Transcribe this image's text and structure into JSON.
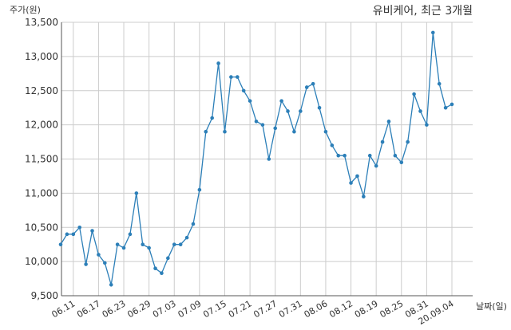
{
  "chart_data": {
    "type": "line",
    "title": "유비케어, 최근 3개월",
    "xlabel": "날짜(일)",
    "ylabel": "주가(원)",
    "ylim": [
      9500,
      13500
    ],
    "grid": true,
    "yticks": [
      9500,
      10000,
      10500,
      11000,
      11500,
      12000,
      12500,
      13000,
      13500
    ],
    "ytick_labels": [
      "9,500",
      "10,000",
      "10,500",
      "11,000",
      "11,500",
      "12,000",
      "12,500",
      "13,000",
      "13,500"
    ],
    "xtick_labels": [
      "06.11",
      "06.17",
      "06.23",
      "06.29",
      "07.03",
      "07.09",
      "07.15",
      "07.21",
      "07.27",
      "07.31",
      "08.06",
      "08.12",
      "08.19",
      "08.25",
      "08.31",
      "20.09.04"
    ],
    "xtick_index": [
      2,
      6,
      10,
      14,
      18,
      22,
      26,
      30,
      34,
      38,
      42,
      46,
      50,
      54,
      58,
      62
    ],
    "series": [
      {
        "color": "#2c7fb8",
        "values": [
          10250,
          10400,
          10400,
          10500,
          9960,
          10450,
          10100,
          9980,
          9660,
          10250,
          10200,
          10400,
          11000,
          10250,
          10200,
          9900,
          9830,
          10050,
          10250,
          10250,
          10350,
          10550,
          11050,
          11900,
          12100,
          12900,
          11900,
          12700,
          12700,
          12500,
          12350,
          12050,
          12000,
          11500,
          11950,
          12350,
          12200,
          11900,
          12200,
          12550,
          12600,
          12250,
          11900,
          11700,
          11550,
          11550,
          11150,
          11250,
          10950,
          11550,
          11400,
          11750,
          12050,
          11550,
          11450,
          11750,
          12450,
          12200,
          12000,
          13350,
          12600,
          12250,
          12300
        ]
      }
    ]
  }
}
